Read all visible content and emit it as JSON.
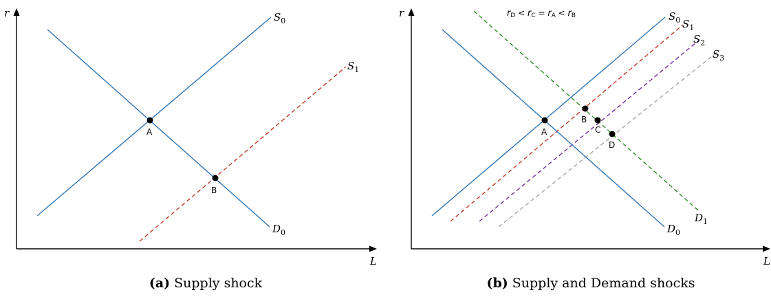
{
  "panels": [
    {
      "id": "a",
      "caption_tag": "(a)",
      "caption_text": "Supply shock",
      "axes": {
        "y": "r",
        "x": "L"
      },
      "curves": [
        {
          "name": "S",
          "sub": "0",
          "style": "solid",
          "color": "#2e75b6"
        },
        {
          "name": "S",
          "sub": "1",
          "style": "dashed",
          "color": "#c0392b"
        },
        {
          "name": "D",
          "sub": "0",
          "style": "solid",
          "color": "#2e75b6"
        }
      ],
      "points": [
        "A",
        "B"
      ]
    },
    {
      "id": "b",
      "caption_tag": "(b)",
      "caption_text": "Supply and Demand shocks",
      "axes": {
        "y": "r",
        "x": "L"
      },
      "annotation": {
        "parts": [
          {
            "sym": "r",
            "sub": "D"
          },
          {
            "op": " < "
          },
          {
            "sym": "r",
            "sub": "C"
          },
          {
            "op": " = "
          },
          {
            "sym": "r",
            "sub": "A"
          },
          {
            "op": " < "
          },
          {
            "sym": "r",
            "sub": "B"
          }
        ]
      },
      "curves": [
        {
          "name": "S",
          "sub": "0",
          "style": "solid",
          "color": "#2e75b6"
        },
        {
          "name": "S",
          "sub": "1",
          "style": "dashed",
          "color": "#c0392b"
        },
        {
          "name": "S",
          "sub": "2",
          "style": "dashed",
          "color": "#7030a0"
        },
        {
          "name": "S",
          "sub": "3",
          "style": "dashed",
          "color": "#a6a6a6"
        },
        {
          "name": "D",
          "sub": "0",
          "style": "solid",
          "color": "#2e75b6"
        },
        {
          "name": "D",
          "sub": "1",
          "style": "dashed",
          "color": "#2e8b2e"
        }
      ],
      "points": [
        "A",
        "B",
        "C",
        "D"
      ]
    }
  ]
}
